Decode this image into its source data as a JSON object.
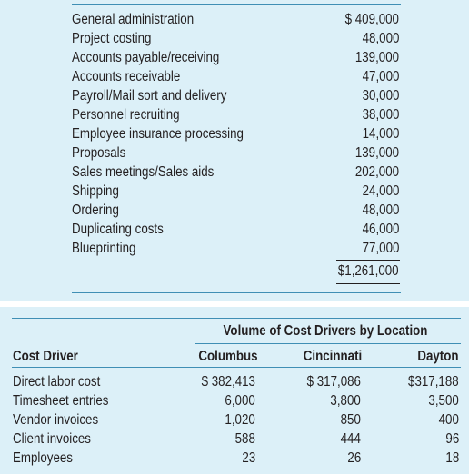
{
  "cost_table": {
    "rows": [
      {
        "label": "General administration",
        "amount": "$ 409,000"
      },
      {
        "label": "Project costing",
        "amount": "48,000"
      },
      {
        "label": "Accounts payable/receiving",
        "amount": "139,000"
      },
      {
        "label": "Accounts receivable",
        "amount": "47,000"
      },
      {
        "label": "Payroll/Mail sort and delivery",
        "amount": "30,000"
      },
      {
        "label": "Personnel recruiting",
        "amount": "38,000"
      },
      {
        "label": "Employee insurance processing",
        "amount": "14,000"
      },
      {
        "label": "Proposals",
        "amount": "139,000"
      },
      {
        "label": "Sales meetings/Sales aids",
        "amount": "202,000"
      },
      {
        "label": "Shipping",
        "amount": "24,000"
      },
      {
        "label": "Ordering",
        "amount": "48,000"
      },
      {
        "label": "Duplicating costs",
        "amount": "46,000"
      },
      {
        "label": "Blueprinting",
        "amount": "77,000"
      }
    ],
    "total": "$1,261,000"
  },
  "driver_table": {
    "group_header": "Volume of Cost Drivers by Location",
    "headers": {
      "driver": "Cost Driver",
      "columbus": "Columbus",
      "cincinnati": "Cincinnati",
      "dayton": "Dayton"
    },
    "rows": [
      {
        "driver": "Direct labor cost",
        "columbus": "$ 382,413",
        "cincinnati": "$ 317,086",
        "dayton": "$317,188"
      },
      {
        "driver": "Timesheet entries",
        "columbus": "6,000",
        "cincinnati": "3,800",
        "dayton": "3,500"
      },
      {
        "driver": "Vendor invoices",
        "columbus": "1,020",
        "cincinnati": "850",
        "dayton": "400"
      },
      {
        "driver": "Client invoices",
        "columbus": "588",
        "cincinnati": "444",
        "dayton": "96"
      },
      {
        "driver": "Employees",
        "columbus": "23",
        "cincinnati": "26",
        "dayton": "18"
      }
    ]
  },
  "colors": {
    "panel_background": "#dcf0f8",
    "rule_color": "#3f8fb5",
    "text_color": "#231f20"
  }
}
